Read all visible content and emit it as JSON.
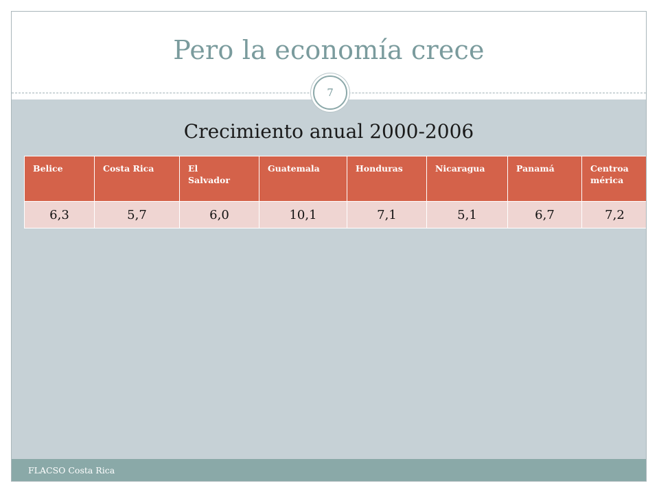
{
  "slide": {
    "title": "Pero la economía crece",
    "page_number": "7",
    "subtitle": "Crecimiento anual 2000-2006",
    "footer": "FLACSO Costa Rica"
  },
  "table": {
    "headers": [
      "Belice",
      "Costa Rica",
      "El Salvador",
      "Guatemala",
      "Honduras",
      "Nicaragua",
      "Panamá",
      "Centroamérica"
    ],
    "header_display": [
      "Belice",
      "Costa Rica",
      "El\nSalvador",
      "Guatemala",
      "Honduras",
      "Nicaragua",
      "Panamá",
      "Centroa\nmérica"
    ],
    "values": [
      "6,3",
      "5,7",
      "6,0",
      "10,1",
      "7,1",
      "5,1",
      "6,7",
      "7,2"
    ]
  },
  "colors": {
    "title": "#7a9b9d",
    "header_bg": "#d4624a",
    "row_bg": "#efd5d2",
    "content_bg": "#c6d1d6",
    "footer_bg": "#8aa9a8"
  }
}
